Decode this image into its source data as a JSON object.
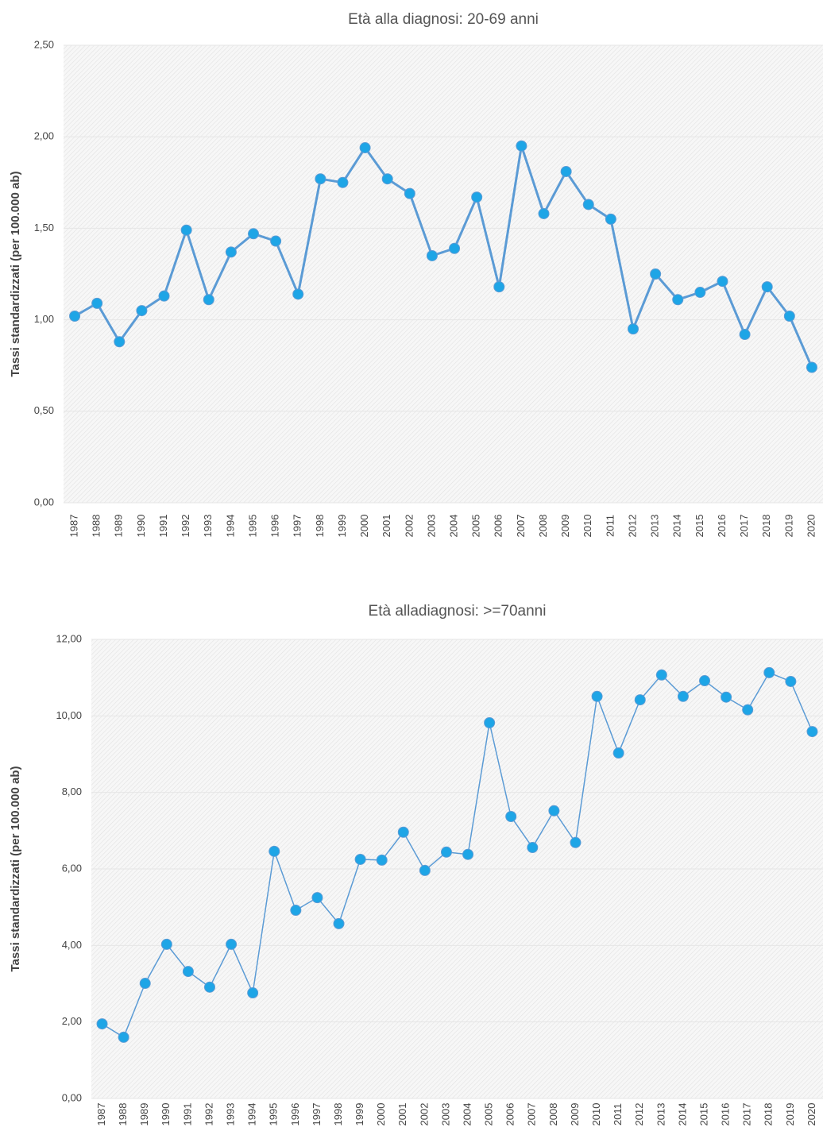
{
  "chart_data": [
    {
      "type": "line",
      "title": "Età alla diagnosi: 20-69 anni",
      "y_label": "Tassi standardizzati (per 100.000 ab)",
      "categories": [
        "1987",
        "1988",
        "1989",
        "1990",
        "1991",
        "1992",
        "1993",
        "1994",
        "1995",
        "1996",
        "1997",
        "1998",
        "1999",
        "2000",
        "2001",
        "2002",
        "2003",
        "2004",
        "2005",
        "2006",
        "2007",
        "2008",
        "2009",
        "2010",
        "2011",
        "2012",
        "2013",
        "2014",
        "2015",
        "2016",
        "2017",
        "2018",
        "2019",
        "2020"
      ],
      "series": [
        {
          "color": "#5b9bd5",
          "marker_color": "#1ea5e6",
          "values": [
            1.02,
            1.09,
            0.88,
            1.05,
            1.13,
            1.49,
            1.11,
            1.37,
            1.47,
            1.43,
            1.14,
            1.77,
            1.75,
            1.94,
            1.77,
            1.69,
            1.35,
            1.39,
            1.67,
            1.18,
            1.95,
            1.58,
            1.81,
            1.63,
            1.55,
            0.95,
            1.25,
            1.11,
            1.15,
            1.21,
            0.92,
            1.18,
            1.02,
            0.74
          ]
        }
      ],
      "ylim": [
        0,
        2.5
      ],
      "yticks": [
        {
          "value": 0,
          "label": "0,00"
        },
        {
          "value": 0.5,
          "label": "0,50"
        },
        {
          "value": 1,
          "label": "1,00"
        },
        {
          "value": 1.5,
          "label": "1,50"
        },
        {
          "value": 2,
          "label": "2,00"
        },
        {
          "value": 2.5,
          "label": "2,50"
        }
      ],
      "grid": true
    },
    {
      "type": "line",
      "title": "Età alladiagnosi: >=70anni",
      "y_label": "Tassi standardizzati (per 100.000 ab)",
      "categories": [
        "1987",
        "1988",
        "1989",
        "1990",
        "1991",
        "1992",
        "1993",
        "1994",
        "1995",
        "1996",
        "1997",
        "1998",
        "1999",
        "2000",
        "2001",
        "2002",
        "2003",
        "2004",
        "2005",
        "2006",
        "2007",
        "2008",
        "2009",
        "2010",
        "2011",
        "2012",
        "2013",
        "2014",
        "2015",
        "2016",
        "2017",
        "2018",
        "2019",
        "2020"
      ],
      "series": [
        {
          "color": "#5b9bd5",
          "marker_color": "#1ea5e6",
          "values": [
            1.95,
            1.6,
            3.01,
            4.03,
            3.32,
            2.91,
            4.03,
            2.76,
            6.46,
            4.92,
            5.25,
            4.57,
            6.25,
            6.23,
            6.96,
            5.96,
            6.44,
            6.38,
            9.82,
            7.37,
            6.56,
            7.52,
            6.69,
            10.51,
            9.03,
            10.42,
            11.07,
            10.51,
            10.92,
            10.49,
            10.16,
            11.13,
            10.9,
            9.59
          ]
        }
      ],
      "ylim": [
        0,
        12
      ],
      "yticks": [
        {
          "value": 0,
          "label": "0,00"
        },
        {
          "value": 2,
          "label": "2,00"
        },
        {
          "value": 4,
          "label": "4,00"
        },
        {
          "value": 6,
          "label": "6,00"
        },
        {
          "value": 8,
          "label": "8,00"
        },
        {
          "value": 10,
          "label": "10,00"
        },
        {
          "value": 12,
          "label": "12,00"
        }
      ],
      "grid": true
    }
  ]
}
